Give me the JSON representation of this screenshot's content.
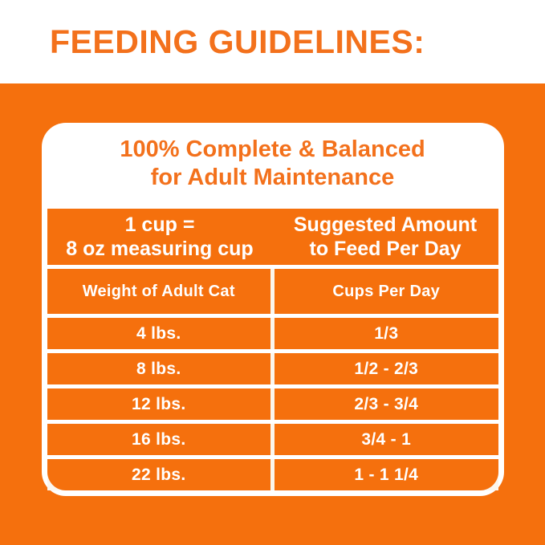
{
  "colors": {
    "orange": "#F5700D",
    "orange-text": "#F3711C",
    "gap": "#FBF6EE",
    "card-white": "#FFFFFF"
  },
  "header": {
    "title": "FEEDING GUIDELINES:"
  },
  "card": {
    "title_line1": "100% Complete & Balanced",
    "title_line2": "for Adult Maintenance",
    "merged_header": {
      "left_line1": "1 cup =",
      "left_line2": "8 oz measuring cup",
      "right_line1": "Suggested Amount",
      "right_line2": "to Feed Per Day"
    },
    "table": {
      "col1_header": "Weight of Adult Cat",
      "col2_header": "Cups Per Day",
      "rows": [
        {
          "weight": "4 lbs.",
          "cups": "1/3"
        },
        {
          "weight": "8 lbs.",
          "cups": "1/2 - 2/3"
        },
        {
          "weight": "12 lbs.",
          "cups": "2/3 - 3/4"
        },
        {
          "weight": "16 lbs.",
          "cups": "3/4 - 1"
        },
        {
          "weight": "22 lbs.",
          "cups": "1 - 1 1/4"
        }
      ]
    }
  }
}
